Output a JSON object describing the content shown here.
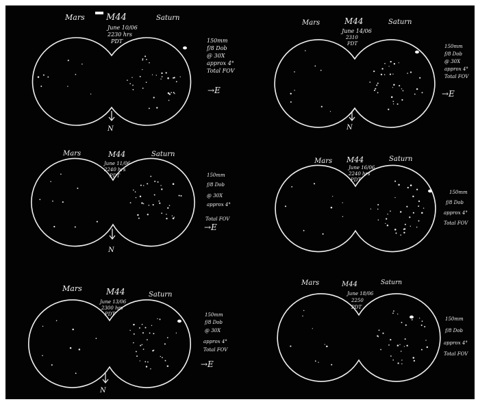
{
  "panels": [
    {
      "left_label": "Mars",
      "cluster_label": "M44",
      "right_label": "Saturn",
      "date_lines": [
        "June 10/06",
        "2230 hrs",
        "PDT"
      ],
      "notes": [
        "150mm",
        "f/8 Dob",
        "@ 30X",
        "approx 4°",
        "Total FOV"
      ],
      "east_label": "→E",
      "north_label": "N"
    },
    {
      "left_label": "Mars",
      "cluster_label": "M44",
      "right_label": "Saturn",
      "date_lines": [
        "June 14/06",
        "2310",
        "PDT"
      ],
      "notes": [
        "150mm",
        "f/8 Dob",
        "@ 30X",
        "approx 4°",
        "Total FOV"
      ],
      "east_label": "→E",
      "north_label": "N"
    },
    {
      "left_label": "Mars",
      "cluster_label": "M44",
      "right_label": "Saturn",
      "date_lines": [
        "June 11/06",
        "2240 hrs",
        "PDT"
      ],
      "notes": [
        "150mm",
        "f/8 Dob",
        "@ 30X",
        "approx 4°",
        "Total FOV"
      ],
      "east_label": "→E",
      "north_label": "N"
    },
    {
      "left_label": "Mars",
      "cluster_label": "M44",
      "right_label": "Saturn",
      "date_lines": [
        "June 16/06",
        "2240 hrs",
        "PDT"
      ],
      "notes": [
        "150mm",
        "f/8 Dob",
        "approx 4°",
        "Total FOV"
      ],
      "east_label": "",
      "north_label": ""
    },
    {
      "left_label": "Mars",
      "cluster_label": "M44",
      "right_label": "Saturn",
      "date_lines": [
        "June 13/06",
        "2300 hrs",
        "PDT"
      ],
      "notes": [
        "150mm",
        "f/8 Dob",
        "@ 30X",
        "approx 4°",
        "Total FOV"
      ],
      "east_label": "→E",
      "north_label": "N"
    },
    {
      "left_label": "Mars",
      "cluster_label": "M44",
      "right_label": "Saturn",
      "date_lines": [
        "June 18/06",
        "2250",
        "PDT"
      ],
      "notes": [
        "150mm",
        "f/8 Dob",
        "approx 4°",
        "Total FOV"
      ],
      "east_label": "",
      "north_label": ""
    }
  ]
}
